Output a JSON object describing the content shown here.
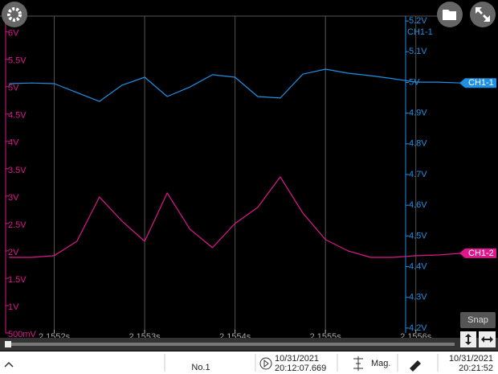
{
  "chart_data": {
    "type": "line",
    "x": [
      2.15515,
      2.155175,
      2.1552,
      2.155225,
      2.15525,
      2.155275,
      2.1553,
      2.155325,
      2.15535,
      2.155375,
      2.1554,
      2.155425,
      2.15545,
      2.155475,
      2.1555,
      2.155525,
      2.15555,
      2.155575,
      2.1556,
      2.155625,
      2.15565
    ],
    "series": [
      {
        "name": "CH1-1",
        "color": "#1e90e6",
        "axis": "y2",
        "values": [
          4.996,
          4.998,
          4.996,
          4.967,
          4.938,
          4.991,
          5.017,
          4.954,
          4.985,
          5.025,
          5.017,
          4.954,
          4.949,
          5.027,
          5.043,
          5.03,
          5.022,
          5.012,
          5.001,
          5.001,
          4.998
        ]
      },
      {
        "name": "CH1-2",
        "color": "#e0168c",
        "values": [
          1.882,
          1.882,
          1.912,
          2.176,
          2.985,
          2.544,
          2.176,
          3.059,
          2.397,
          2.059,
          2.5,
          2.794,
          3.353,
          2.691,
          2.206,
          2.0,
          1.882,
          1.882,
          1.912,
          1.926,
          1.956
        ]
      }
    ],
    "y2label": "CH1-1",
    "xlim": [
      2.15514,
      2.15565
    ],
    "xticks": [
      {
        "value": 2.1552,
        "label": "2.1552s"
      },
      {
        "value": 2.1553,
        "label": "2.1553s"
      },
      {
        "value": 2.1554,
        "label": "2.1554s"
      },
      {
        "value": 2.1555,
        "label": "2.1555s"
      },
      {
        "value": 2.1556,
        "label": "2.1556s"
      }
    ],
    "ylim": [
      0.5,
      6.29
    ],
    "yticks": [
      {
        "value": 0.5,
        "label": "500mV"
      },
      {
        "value": 1,
        "label": "1V"
      },
      {
        "value": 1.5,
        "label": "1.5V"
      },
      {
        "value": 2,
        "label": "2V"
      },
      {
        "value": 2.5,
        "label": "2.5V"
      },
      {
        "value": 3,
        "label": "3V"
      },
      {
        "value": 3.5,
        "label": "3.5V"
      },
      {
        "value": 4,
        "label": "4V"
      },
      {
        "value": 4.5,
        "label": "4.5V"
      },
      {
        "value": 5,
        "label": "5V"
      },
      {
        "value": 5.5,
        "label": "5.5V"
      },
      {
        "value": 6,
        "label": "6V"
      }
    ],
    "y2lim": [
      4.184,
      5.216
    ],
    "y2ticks": [
      {
        "value": 4.2,
        "label": "4.2V"
      },
      {
        "value": 4.3,
        "label": "4.3V"
      },
      {
        "value": 4.4,
        "label": "4.4V"
      },
      {
        "value": 4.5,
        "label": "4.5V"
      },
      {
        "value": 4.6,
        "label": "4.6V"
      },
      {
        "value": 4.7,
        "label": "4.7V"
      },
      {
        "value": 4.8,
        "label": "4.8V"
      },
      {
        "value": 4.9,
        "label": "4.9V"
      },
      {
        "value": 5,
        "label": "5V"
      },
      {
        "value": 5.1,
        "label": "5.1V"
      },
      {
        "value": 5.2,
        "label": "5.2V"
      }
    ],
    "grid": "x"
  },
  "ui": {
    "snap": "Snap",
    "number": "No.1",
    "start_date": "10/31/2021",
    "start_time": "20:12:07.669",
    "mag": "Mag.",
    "now_date": "10/31/2021",
    "now_time": "20:21:52"
  }
}
